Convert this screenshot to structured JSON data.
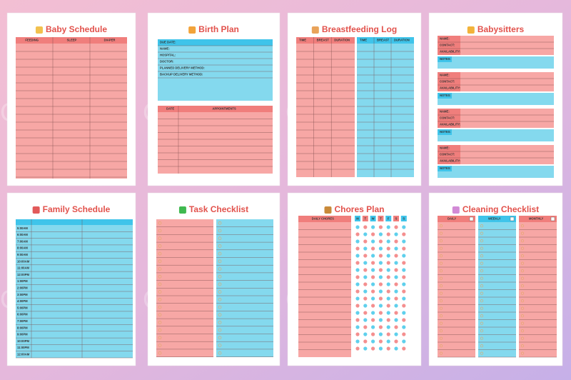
{
  "watermark": "CraftNest",
  "pages": [
    {
      "title": "Baby Schedule",
      "columns": [
        "FEEDING",
        "SLEEP",
        "DIAPER"
      ]
    },
    {
      "title": "Birth Plan",
      "fields": [
        "DUE DATE:",
        "NAME:",
        "HOSPITAL:",
        "DOCTOR:",
        "PLANNED DELIVERY METHOD:",
        "BACKUP DELIVERY METHOD:"
      ],
      "columns": [
        "DATE",
        "APPOINTMENTS"
      ]
    },
    {
      "title": "Breastfeeding Log",
      "columns": [
        "TIME",
        "BREAST",
        "DURATION",
        "TIME",
        "BREAST",
        "DURATION"
      ]
    },
    {
      "title": "Babysitters",
      "fields": [
        "NAME:",
        "CONTACT:",
        "AVAILABILITY:"
      ],
      "notes": "NOTES:"
    },
    {
      "title": "Family Schedule",
      "times": [
        "5:00AM",
        "6:00AM",
        "7:00AM",
        "8:00AM",
        "9:00AM",
        "10:00AM",
        "11:00AM",
        "12:00PM",
        "1:00PM",
        "2:00PM",
        "3:00PM",
        "4:00PM",
        "5:00PM",
        "6:00PM",
        "7:00PM",
        "8:00PM",
        "9:00PM",
        "10:00PM",
        "11:00PM",
        "12:00AM"
      ]
    },
    {
      "title": "Task Checklist"
    },
    {
      "title": "Chores Plan",
      "columns": [
        "DAILY CHORES"
      ],
      "days": [
        "M",
        "T",
        "W",
        "T",
        "F",
        "S",
        "S"
      ]
    },
    {
      "title": "Cleaning Checklist",
      "columns": [
        "DAILY",
        "WEEKLY",
        "MONTHLY"
      ]
    }
  ]
}
